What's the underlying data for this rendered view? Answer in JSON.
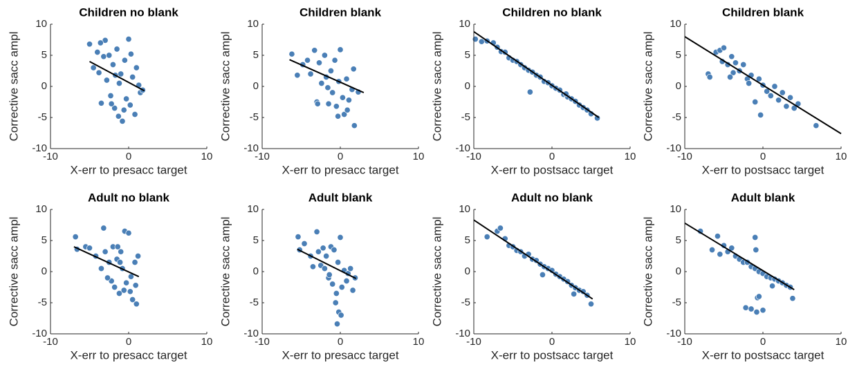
{
  "chart_data": [
    {
      "type": "scatter",
      "title": "Children no blank",
      "x_label": "X-err to presacc target",
      "y_label": "Corrective sacc ampl",
      "color": "#4a7fb6",
      "xlim": [
        -10,
        10
      ],
      "xticks": [
        -10,
        0,
        10
      ],
      "ylim": [
        -10,
        10
      ],
      "yticks": [
        -10,
        -5,
        0,
        5,
        10
      ],
      "x": [
        -5,
        -4.5,
        -4,
        -3.8,
        -3.5,
        -3.2,
        -3,
        -2.8,
        -2.5,
        -2.3,
        -2,
        -1.8,
        -1.5,
        -1.3,
        -1,
        -0.8,
        -0.5,
        -0.3,
        0,
        0.2,
        0.5,
        0.8,
        1,
        1.3,
        1.5,
        1.8,
        -2.2,
        -1.2,
        0.3,
        -0.6,
        -3.6,
        -1.7
      ],
      "y": [
        6.8,
        3,
        5.5,
        2.2,
        -2.7,
        4.8,
        7.4,
        1,
        5,
        -1.5,
        3.5,
        -3.5,
        6,
        -4.8,
        2,
        -5.6,
        4.2,
        -2,
        7.6,
        -3,
        1.5,
        -4.5,
        3,
        0.2,
        -1,
        -0.6,
        -2.8,
        0.5,
        5.2,
        -3.8,
        7,
        1.8
      ],
      "fit_line": {
        "x": [
          -5,
          2
        ],
        "y": [
          4,
          -0.7
        ]
      }
    },
    {
      "type": "scatter",
      "title": "Children blank",
      "x_label": "X-err to presacc target",
      "y_label": "Corrective sacc ampl",
      "color": "#4a7fb6",
      "xlim": [
        -10,
        10
      ],
      "xticks": [
        -10,
        0,
        10
      ],
      "ylim": [
        -10,
        10
      ],
      "yticks": [
        -10,
        -5,
        0,
        5,
        10
      ],
      "x": [
        -6.2,
        -5.5,
        -4.8,
        -4.2,
        -3.8,
        -3.3,
        -3,
        -2.7,
        -2.4,
        -2,
        -1.8,
        -1.5,
        -1.2,
        -1,
        -0.7,
        -0.5,
        -0.2,
        0,
        0.3,
        0.5,
        0.8,
        1.1,
        1.5,
        1.8,
        2.3,
        -2.9,
        -1.6,
        0.9,
        -0.3,
        1.7
      ],
      "y": [
        5.2,
        1.8,
        3.5,
        4.2,
        2,
        5.8,
        -2.5,
        3.8,
        0.5,
        5,
        1.5,
        -2.8,
        2.5,
        -1,
        4.2,
        -3.2,
        0.8,
        5.9,
        -1.8,
        -4.5,
        1.2,
        -2.2,
        -0.5,
        -6.3,
        -0.9,
        -2.8,
        -0.2,
        -3.8,
        -4.8,
        2.8
      ],
      "fit_line": {
        "x": [
          -6.5,
          3
        ],
        "y": [
          4.3,
          -1
        ]
      }
    },
    {
      "type": "scatter",
      "title": "Children no blank",
      "x_label": "X-err to postsacc target",
      "y_label": "Corrective sacc ampl",
      "color": "#4a7fb6",
      "xlim": [
        -10,
        10
      ],
      "xticks": [
        -10,
        0,
        10
      ],
      "ylim": [
        -10,
        10
      ],
      "yticks": [
        -10,
        -5,
        0,
        5,
        10
      ],
      "x": [
        -9.8,
        -9,
        -8.3,
        -7.5,
        -7,
        -6.5,
        -6,
        -5.5,
        -5,
        -4.5,
        -4,
        -3.5,
        -3,
        -2.5,
        -2,
        -1.5,
        -1,
        -0.5,
        0,
        0.5,
        1,
        1.5,
        2,
        2.5,
        3,
        3.5,
        4,
        4.5,
        5,
        5.8,
        -2.8,
        1.8
      ],
      "y": [
        7.6,
        7.2,
        7.3,
        7.0,
        6.3,
        5.6,
        5.5,
        4.6,
        4.2,
        4.0,
        3.5,
        3.0,
        2.6,
        2.3,
        1.8,
        1.5,
        0.8,
        0.6,
        0.1,
        -0.3,
        -0.6,
        -1.3,
        -1.7,
        -2.0,
        -2.4,
        -3.0,
        -3.4,
        -3.8,
        -4.4,
        -5.1,
        -0.9,
        -1.2
      ],
      "fit_line": {
        "x": [
          -10,
          6
        ],
        "y": [
          8.8,
          -5
        ]
      }
    },
    {
      "type": "scatter",
      "title": "Children blank",
      "x_label": "X-err to postsacc target",
      "y_label": "Corrective sacc ampl",
      "color": "#4a7fb6",
      "xlim": [
        -10,
        10
      ],
      "xticks": [
        -10,
        0,
        10
      ],
      "ylim": [
        -10,
        10
      ],
      "yticks": [
        -10,
        -5,
        0,
        5,
        10
      ],
      "x": [
        -7,
        -6.8,
        -6,
        -5.5,
        -5.2,
        -5,
        -4.5,
        -4,
        -3.8,
        -3.5,
        -3,
        -2.5,
        -2,
        -1.8,
        -1.5,
        -1,
        -0.5,
        0,
        0.5,
        1,
        1.5,
        2,
        2.5,
        3,
        3.5,
        4,
        4.5,
        6.8,
        -0.3,
        -4.2
      ],
      "y": [
        2,
        1.5,
        5.5,
        5.8,
        4,
        6.2,
        3.5,
        4.8,
        2.2,
        3.8,
        2.5,
        3.5,
        1.2,
        0.5,
        1.8,
        -2.5,
        1.2,
        0.2,
        -0.8,
        -1.5,
        0,
        -2.2,
        -1,
        -3.2,
        -1.8,
        -3.5,
        -2.8,
        -6.3,
        -4.6,
        1.5
      ],
      "fit_line": {
        "x": [
          -10,
          10
        ],
        "y": [
          8,
          -7.6
        ]
      }
    },
    {
      "type": "scatter",
      "title": "Adult no blank",
      "x_label": "X-err to presacc target",
      "y_label": "Corrective sacc ampl",
      "color": "#4a7fb6",
      "xlim": [
        -10,
        10
      ],
      "xticks": [
        -10,
        0,
        10
      ],
      "ylim": [
        -10,
        10
      ],
      "yticks": [
        -10,
        -5,
        0,
        5,
        10
      ],
      "x": [
        -6.8,
        -6.6,
        -5.5,
        -5,
        -4.2,
        -3.5,
        -3.2,
        -3,
        -2.5,
        -2.2,
        -2,
        -1.8,
        -1.5,
        -1.2,
        -1,
        -0.8,
        -0.5,
        -0.3,
        0,
        0.2,
        0.5,
        0.8,
        1,
        1.2,
        -0.6,
        -1.4,
        0.3,
        0.9,
        -2.7,
        -1.1
      ],
      "y": [
        5.6,
        3.6,
        4,
        3.8,
        2.5,
        0.5,
        7,
        3.2,
        1.5,
        -1.5,
        4,
        -2.5,
        2,
        -3.5,
        3.2,
        0.5,
        6.5,
        -1.8,
        6.2,
        -3.2,
        -4.5,
        1.5,
        -5.2,
        2.5,
        -3,
        4,
        -0.8,
        -2.2,
        -1,
        1.5
      ],
      "fit_line": {
        "x": [
          -7,
          1.3
        ],
        "y": [
          4,
          -0.8
        ]
      }
    },
    {
      "type": "scatter",
      "title": "Adult blank",
      "x_label": "X-err to presacc target",
      "y_label": "Corrective sacc ampl",
      "color": "#4a7fb6",
      "xlim": [
        -10,
        10
      ],
      "xticks": [
        -10,
        0,
        10
      ],
      "ylim": [
        -10,
        10
      ],
      "yticks": [
        -10,
        -5,
        0,
        5,
        10
      ],
      "x": [
        -5.4,
        -5.2,
        -4.6,
        -3.8,
        -3,
        -2.8,
        -2.5,
        -2.2,
        -2,
        -1.8,
        -1.5,
        -1.2,
        -1,
        -0.8,
        -0.5,
        -0.3,
        0,
        0.2,
        0.5,
        0.8,
        1,
        1.3,
        1.6,
        1.9,
        -0.4,
        -0.2,
        -0.6,
        0.1,
        -3.5,
        -1.4
      ],
      "y": [
        5.6,
        3.5,
        4.5,
        2.5,
        6.4,
        3.2,
        1,
        3.8,
        0.5,
        2.5,
        -1,
        4,
        -2,
        3.5,
        -3.5,
        1.5,
        5.5,
        -2.5,
        0.2,
        -1.5,
        -0.3,
        0.5,
        -3,
        -1,
        -8.4,
        -6.5,
        -5,
        -7,
        0.8,
        -0.5
      ],
      "fit_line": {
        "x": [
          -5.5,
          2
        ],
        "y": [
          3.6,
          -1.1
        ]
      }
    },
    {
      "type": "scatter",
      "title": "Adult no blank",
      "x_label": "X-err to postsacc target",
      "y_label": "Corrective sacc ampl",
      "color": "#4a7fb6",
      "xlim": [
        -10,
        10
      ],
      "xticks": [
        -10,
        0,
        10
      ],
      "ylim": [
        -10,
        10
      ],
      "yticks": [
        -10,
        -5,
        0,
        5,
        10
      ],
      "x": [
        -8.3,
        -7,
        -6.6,
        -6,
        -5.5,
        -5,
        -4.5,
        -4,
        -3.5,
        -3,
        -2.5,
        -2,
        -1.5,
        -1,
        -0.5,
        0,
        0.5,
        1,
        1.5,
        2,
        2.5,
        3,
        3.5,
        4,
        4.5,
        5,
        -1.2,
        2.8
      ],
      "y": [
        5.6,
        6.5,
        7,
        5.3,
        4.2,
        4,
        3.4,
        3.2,
        2.5,
        2.8,
        2,
        1.8,
        1.2,
        0.8,
        0.5,
        0.2,
        -0.4,
        -0.8,
        -1.2,
        -1.6,
        -2.2,
        -2.6,
        -3,
        -3.2,
        -3.8,
        -5.2,
        -0.5,
        -3.6
      ],
      "fit_line": {
        "x": [
          -10,
          5.2
        ],
        "y": [
          8.3,
          -4.4
        ]
      }
    },
    {
      "type": "scatter",
      "title": "Adult blank",
      "x_label": "X-err to postsacc target",
      "y_label": "Corrective sacc ampl",
      "color": "#4a7fb6",
      "xlim": [
        -10,
        10
      ],
      "xticks": [
        -10,
        0,
        10
      ],
      "ylim": [
        -10,
        10
      ],
      "yticks": [
        -10,
        -5,
        0,
        5,
        10
      ],
      "x": [
        -8,
        -6.5,
        -5.8,
        -5.5,
        -5,
        -4.5,
        -4,
        -3.5,
        -3,
        -2.5,
        -2,
        -1.5,
        -1,
        -0.5,
        0,
        0.5,
        1,
        1.5,
        2,
        2.5,
        3,
        3.5,
        3.8,
        -2.2,
        -1.5,
        -0.8,
        -0.7,
        -0.5,
        0,
        -1,
        1.2,
        -0.9
      ],
      "y": [
        6.5,
        3.5,
        5.7,
        2.8,
        4.2,
        3.2,
        3.8,
        2.5,
        2,
        1.5,
        1.5,
        0.8,
        0.5,
        0,
        -0.3,
        -0.8,
        -1,
        -1.2,
        -1.5,
        -1.8,
        -2.2,
        -2.5,
        -4.3,
        -5.8,
        -6,
        -6.5,
        -4.2,
        -4,
        -6.2,
        5.5,
        -2.3,
        3.5
      ],
      "fit_line": {
        "x": [
          -10,
          4
        ],
        "y": [
          7.8,
          -2.9
        ]
      }
    }
  ]
}
